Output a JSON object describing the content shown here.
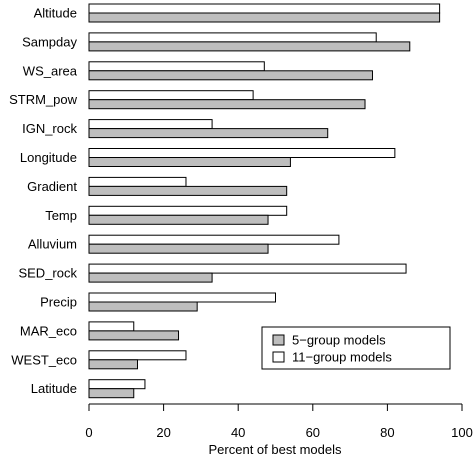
{
  "chart_data": {
    "type": "bar",
    "orientation": "horizontal",
    "categories": [
      "Altitude",
      "Sampday",
      "WS_area",
      "STRM_pow",
      "IGN_rock",
      "Longitude",
      "Gradient",
      "Temp",
      "Alluvium",
      "SED_rock",
      "Precip",
      "MAR_eco",
      "WEST_eco",
      "Latitude"
    ],
    "series": [
      {
        "name": "11−group models",
        "color": "#ffffff",
        "values": [
          94,
          77,
          47,
          44,
          33,
          82,
          26,
          53,
          67,
          85,
          50,
          12,
          26,
          15
        ]
      },
      {
        "name": "5−group models",
        "color": "#bebebe",
        "values": [
          94,
          86,
          76,
          74,
          64,
          54,
          53,
          48,
          48,
          33,
          29,
          24,
          13,
          12
        ]
      }
    ],
    "xlabel": "Percent of best models",
    "ylabel": "",
    "xlim": [
      0,
      100
    ],
    "xticks": [
      "0",
      "20",
      "40",
      "60",
      "80",
      "100"
    ],
    "legend_position": "bottom-right",
    "legend_order": [
      1,
      0
    ],
    "grid": false
  }
}
